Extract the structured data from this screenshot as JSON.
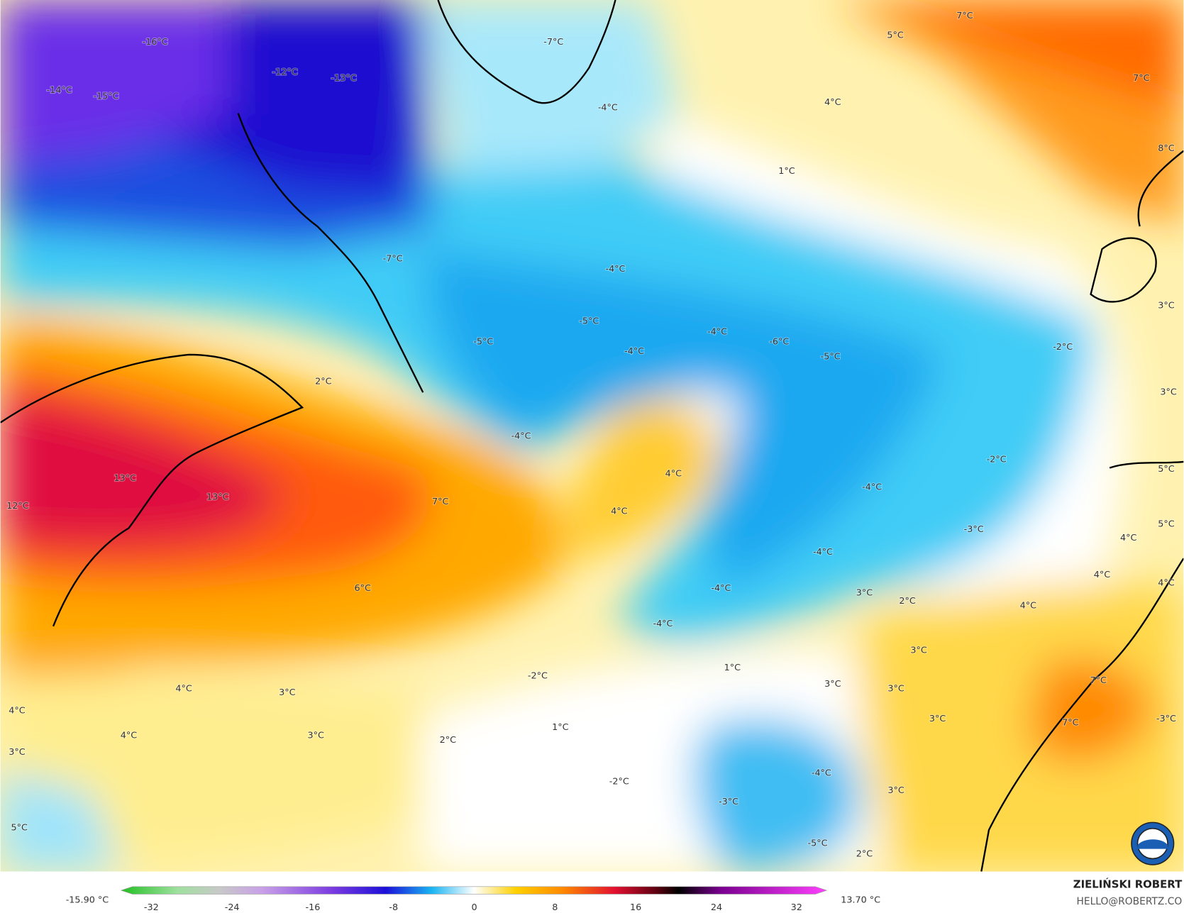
{
  "map": {
    "labels": [
      "-16°C",
      "-12°C",
      "-13°C",
      "-14°C",
      "-15°C",
      "-7°C",
      "7°C",
      "5°C",
      "7°C",
      "4°C",
      "-4°C",
      "8°C",
      "1°C",
      "-7°C",
      "-4°C",
      "3°C",
      "-5°C",
      "-4°C",
      "-6°C",
      "-5°C",
      "-4°C",
      "-5°C",
      "-2°C",
      "2°C",
      "3°C",
      "-4°C",
      "-2°C",
      "5°C",
      "4°C",
      "13°C",
      "-4°C",
      "13°C",
      "7°C",
      "12°C",
      "4°C",
      "5°C",
      "-3°C",
      "4°C",
      "-4°C",
      "4°C",
      "4°C",
      "-4°C",
      "6°C",
      "3°C",
      "2°C",
      "4°C",
      "-4°C",
      "3°C",
      "1°C",
      "-2°C",
      "7°C",
      "3°C",
      "3°C",
      "4°C",
      "3°C",
      "4°C",
      "3°C",
      "-3°C",
      "7°C",
      "1°C",
      "4°C",
      "3°C",
      "2°C",
      "3°C",
      "-4°C",
      "-2°C",
      "3°C",
      "-3°C",
      "5°C",
      "-5°C",
      "2°C"
    ]
  },
  "colorbar": {
    "min_label": "-15.90 °C",
    "max_label": "13.70 °C",
    "ticks": [
      -32,
      -24,
      -16,
      -8,
      0,
      8,
      16,
      24,
      32
    ]
  },
  "credit": {
    "name": "ZIELIŃSKI ROBERT",
    "email": "HELLO@ROBERTZ.CO"
  }
}
